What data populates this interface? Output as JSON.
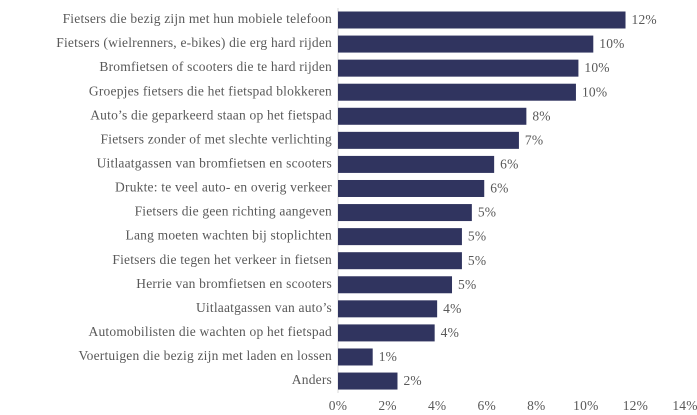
{
  "chart_data": {
    "type": "hbar",
    "categories": [
      "Fietsers die bezig zijn met hun mobiele telefoon",
      "Fietsers (wielrenners, e-bikes) die erg hard rijden",
      "Bromfietsen of scooters die te hard rijden",
      "Groepjes fietsers die het fietspad blokkeren",
      "Auto’s die geparkeerd staan op het fietspad",
      "Fietsers zonder of met slechte verlichting",
      "Uitlaatgassen van bromfietsen en scooters",
      "Drukte: te veel auto- en overig verkeer",
      "Fietsers die geen richting aangeven",
      "Lang moeten wachten bij stoplichten",
      "Fietsers die tegen het verkeer in fietsen",
      "Herrie van bromfietsen en scooters",
      "Uitlaatgassen van auto’s",
      "Automobilisten die wachten op het fietspad",
      "Voertuigen die bezig zijn met laden en lossen",
      "Anders"
    ],
    "values": [
      11.6,
      10.3,
      9.7,
      9.6,
      7.6,
      7.3,
      6.3,
      5.9,
      5.4,
      5.0,
      5.0,
      4.6,
      4.0,
      3.9,
      1.4,
      2.4
    ],
    "value_labels": [
      "12%",
      "10%",
      "10%",
      "10%",
      "8%",
      "7%",
      "6%",
      "6%",
      "5%",
      "5%",
      "5%",
      "5%",
      "4%",
      "4%",
      "1%",
      "2%"
    ],
    "color": "#30345f",
    "xlim": [
      0,
      14
    ],
    "xticks": [
      {
        "value": 0,
        "label": "0%"
      },
      {
        "value": 2,
        "label": "2%"
      },
      {
        "value": 4,
        "label": "4%"
      },
      {
        "value": 6,
        "label": "6%"
      },
      {
        "value": 8,
        "label": "8%"
      },
      {
        "value": 10,
        "label": "10%"
      },
      {
        "value": 12,
        "label": "12%"
      },
      {
        "value": 14,
        "label": "14%"
      }
    ],
    "grid": false
  }
}
